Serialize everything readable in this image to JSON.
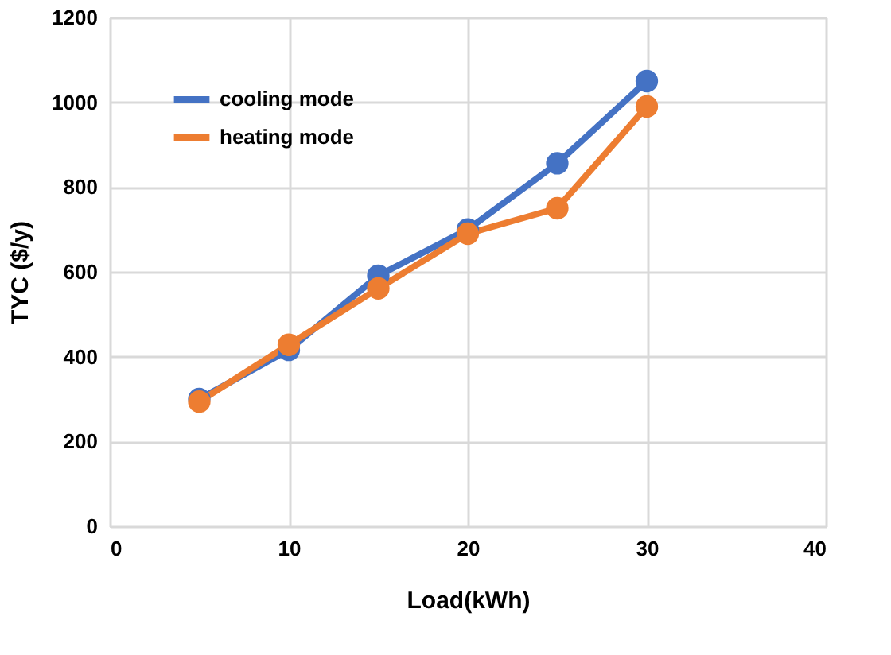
{
  "chart_data": {
    "type": "line",
    "xlabel": "Load(kWh)",
    "ylabel": "TYC ($/y)",
    "x": [
      5,
      10,
      15,
      20,
      25,
      30
    ],
    "series": [
      {
        "name": "cooling mode",
        "color": "#4472c4",
        "values": [
          300,
          416,
          591,
          700,
          856,
          1050
        ]
      },
      {
        "name": "heating mode",
        "color": "#ed7d31",
        "values": [
          294,
          428,
          561,
          690,
          750,
          990
        ]
      }
    ],
    "xlim": [
      0,
      40
    ],
    "xticks": [
      0,
      10,
      20,
      30,
      40
    ],
    "ylim": [
      0,
      1200
    ],
    "yticks": [
      0,
      200,
      400,
      600,
      800,
      1000,
      1200
    ],
    "grid": true,
    "legend": "top left",
    "marker": "circle",
    "line_style": "solid"
  }
}
